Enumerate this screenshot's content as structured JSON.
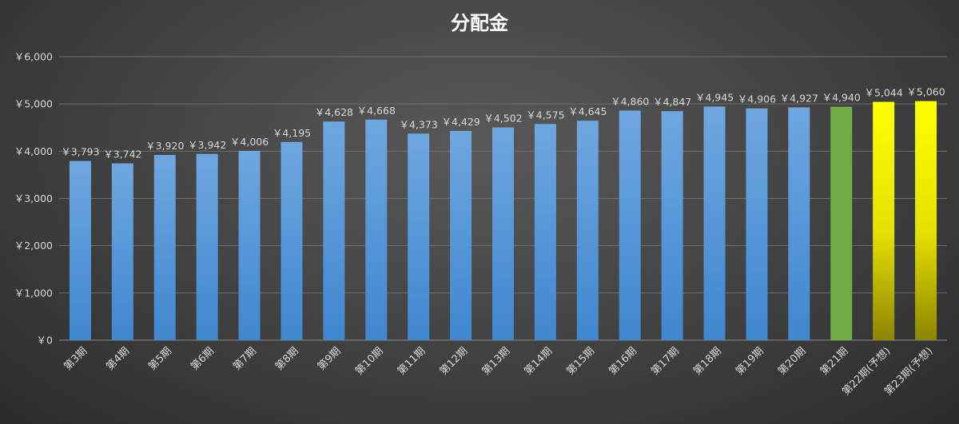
{
  "chart_data": {
    "type": "bar",
    "title": "分配金",
    "xlabel": "",
    "ylabel": "",
    "ylim": [
      0,
      6000
    ],
    "yticks": [
      0,
      1000,
      2000,
      3000,
      4000,
      5000,
      6000
    ],
    "ytick_labels": [
      "￥0",
      "￥1,000",
      "￥2,000",
      "￥3,000",
      "￥4,000",
      "￥5,000",
      "￥6,000"
    ],
    "grid": true,
    "legend": "none",
    "categories": [
      "第3期",
      "第4期",
      "第5期",
      "第6期",
      "第7期",
      "第8期",
      "第9期",
      "第10期",
      "第11期",
      "第12期",
      "第13期",
      "第14期",
      "第15期",
      "第16期",
      "第17期",
      "第18期",
      "第19期",
      "第20期",
      "第21期",
      "第22期(予想)",
      "第23期(予想)"
    ],
    "values": [
      3793,
      3742,
      3920,
      3942,
      4006,
      4195,
      4628,
      4668,
      4373,
      4429,
      4502,
      4575,
      4645,
      4860,
      4847,
      4945,
      4906,
      4927,
      4940,
      5044,
      5060
    ],
    "value_labels": [
      "￥3,793",
      "￥3,742",
      "￥3,920",
      "￥3,942",
      "￥4,006",
      "￥4,195",
      "￥4,628",
      "￥4,668",
      "￥4,373",
      "￥4,429",
      "￥4,502",
      "￥4,575",
      "￥4,645",
      "￥4,860",
      "￥4,847",
      "￥4,945",
      "￥4,906",
      "￥4,927",
      "￥4,940",
      "￥5,044",
      "￥5,060"
    ],
    "bar_colors": [
      "blue",
      "blue",
      "blue",
      "blue",
      "blue",
      "blue",
      "blue",
      "blue",
      "blue",
      "blue",
      "blue",
      "blue",
      "blue",
      "blue",
      "blue",
      "blue",
      "blue",
      "blue",
      "green",
      "yellow",
      "yellow"
    ],
    "colors": {
      "blue_top": "#6fa7e0",
      "blue_bottom": "#3f87cf",
      "green": "#70ad47",
      "yellow_top": "#ffff00",
      "yellow_bottom": "#8c8500"
    }
  }
}
